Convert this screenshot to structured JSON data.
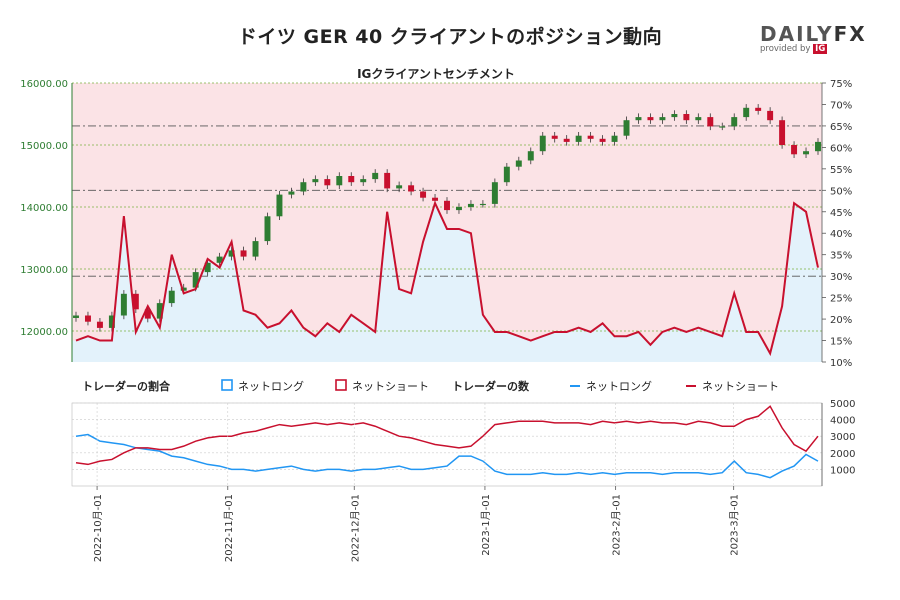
{
  "title": "ドイツ GER 40 クライアントのポジション動向",
  "brand": {
    "name_left": "DAILY",
    "name_right": "FX",
    "provided_by": "provided by",
    "provider": "IG"
  },
  "colors": {
    "long": "#2196f3",
    "short": "#c8102e",
    "long_bg": "#e3f2fb",
    "short_bg": "#fbe3e6",
    "price_axis": "#2e7d32",
    "candle_up": "#2e7d32",
    "candle_down": "#c8102e"
  },
  "chart_data": [
    {
      "type": "line",
      "title": "IGクライアントセンチメント",
      "description_candles": "GER 40 price candles on left axis; net short % line on right axis",
      "left_axis": {
        "ticks": [
          "16000.00",
          "15000.00",
          "14000.00",
          "13000.00",
          "12000.00"
        ],
        "ylim": [
          11500,
          16000
        ]
      },
      "right_axis": {
        "ticks": [
          "75%",
          "70%",
          "65%",
          "60%",
          "55%",
          "50%",
          "45%",
          "40%",
          "35%",
          "30%",
          "25%",
          "20%",
          "15%",
          "10%"
        ],
        "ylim": [
          10,
          75
        ]
      },
      "reference_lines": [
        65,
        50,
        30
      ],
      "x_dates": [
        "2022-09-26",
        "2022-09-28",
        "2022-09-30",
        "2022-10-04",
        "2022-10-06",
        "2022-10-10",
        "2022-10-12",
        "2022-10-14",
        "2022-10-18",
        "2022-10-20",
        "2022-10-24",
        "2022-10-26",
        "2022-10-28",
        "2022-11-01",
        "2022-11-03",
        "2022-11-07",
        "2022-11-09",
        "2022-11-11",
        "2022-11-15",
        "2022-11-17",
        "2022-11-21",
        "2022-11-23",
        "2022-11-25",
        "2022-11-29",
        "2022-12-01",
        "2022-12-05",
        "2022-12-07",
        "2022-12-09",
        "2022-12-13",
        "2022-12-15",
        "2022-12-19",
        "2022-12-21",
        "2022-12-23",
        "2022-12-28",
        "2023-01-02",
        "2023-01-04",
        "2023-01-06",
        "2023-01-10",
        "2023-01-12",
        "2023-01-16",
        "2023-01-18",
        "2023-01-20",
        "2023-01-24",
        "2023-01-26",
        "2023-01-30",
        "2023-02-01",
        "2023-02-03",
        "2023-02-07",
        "2023-02-09",
        "2023-02-13",
        "2023-02-15",
        "2023-02-17",
        "2023-02-21",
        "2023-02-23",
        "2023-02-27",
        "2023-03-01",
        "2023-03-03",
        "2023-03-07",
        "2023-03-09",
        "2023-03-13",
        "2023-03-15",
        "2023-03-17",
        "2023-03-21"
      ],
      "price_close": [
        12250,
        12150,
        12050,
        12250,
        12600,
        12350,
        12200,
        12450,
        12650,
        12700,
        12950,
        13100,
        13200,
        13300,
        13200,
        13450,
        13850,
        14200,
        14250,
        14400,
        14450,
        14350,
        14500,
        14400,
        14450,
        14550,
        14300,
        14350,
        14250,
        14150,
        14100,
        13950,
        14000,
        14050,
        14050,
        14400,
        14650,
        14750,
        14900,
        15150,
        15100,
        15050,
        15150,
        15100,
        15050,
        15150,
        15400,
        15450,
        15400,
        15450,
        15500,
        15400,
        15450,
        15300,
        15300,
        15450,
        15600,
        15550,
        15400,
        15000,
        14850,
        14900,
        15050
      ],
      "net_short_pct": [
        15,
        16,
        15,
        15,
        44,
        17,
        23,
        18,
        35,
        26,
        27,
        34,
        32,
        38,
        22,
        21,
        18,
        19,
        22,
        18,
        16,
        19,
        17,
        21,
        19,
        17,
        45,
        27,
        26,
        38,
        47,
        41,
        41,
        40,
        21,
        17,
        17,
        16,
        15,
        16,
        17,
        17,
        18,
        17,
        19,
        16,
        16,
        17,
        14,
        17,
        18,
        17,
        18,
        17,
        16,
        26,
        17,
        17,
        12,
        23,
        47,
        45,
        32
      ]
    },
    {
      "type": "line",
      "title": "トレーダーの数",
      "legend_ratio_title": "トレーダーの割合",
      "series": [
        {
          "name": "ネットロング",
          "values": [
            3000,
            3100,
            2700,
            2600,
            2500,
            2300,
            2200,
            2100,
            1800,
            1700,
            1500,
            1300,
            1200,
            1000,
            1000,
            900,
            1000,
            1100,
            1200,
            1000,
            900,
            1000,
            1000,
            900,
            1000,
            1000,
            1100,
            1200,
            1000,
            1000,
            1100,
            1200,
            1800,
            1800,
            1500,
            900,
            700,
            700,
            700,
            800,
            700,
            700,
            800,
            700,
            800,
            700,
            800,
            800,
            800,
            700,
            800,
            800,
            800,
            700,
            800,
            1500,
            800,
            700,
            500,
            900,
            1200,
            1900,
            1500
          ]
        },
        {
          "name": "ネットショート",
          "values": [
            1400,
            1300,
            1500,
            1600,
            2000,
            2300,
            2300,
            2200,
            2200,
            2400,
            2700,
            2900,
            3000,
            3000,
            3200,
            3300,
            3500,
            3700,
            3600,
            3700,
            3800,
            3700,
            3800,
            3700,
            3800,
            3600,
            3300,
            3000,
            2900,
            2700,
            2500,
            2400,
            2300,
            2400,
            3000,
            3700,
            3800,
            3900,
            3900,
            3900,
            3800,
            3800,
            3800,
            3700,
            3900,
            3800,
            3900,
            3800,
            3900,
            3800,
            3800,
            3700,
            3900,
            3800,
            3600,
            3600,
            4000,
            4200,
            4800,
            3500,
            2500,
            2100,
            3000
          ]
        }
      ],
      "right_axis": {
        "ticks": [
          "5000",
          "4000",
          "3000",
          "2000",
          "1000"
        ],
        "ylim": [
          0,
          5000
        ]
      },
      "x_tick_labels": [
        "2022-10月-01",
        "2022-11月-01",
        "2022-12月-01",
        "2023-1月-01",
        "2023-2月-01",
        "2023-3月-01"
      ]
    }
  ],
  "legend": {
    "ratio_title": "トレーダーの割合",
    "ratio_long": "ネットロング",
    "ratio_short": "ネットショート",
    "count_title": "トレーダーの数",
    "count_long": "ネットロング",
    "count_short": "ネットショート"
  }
}
